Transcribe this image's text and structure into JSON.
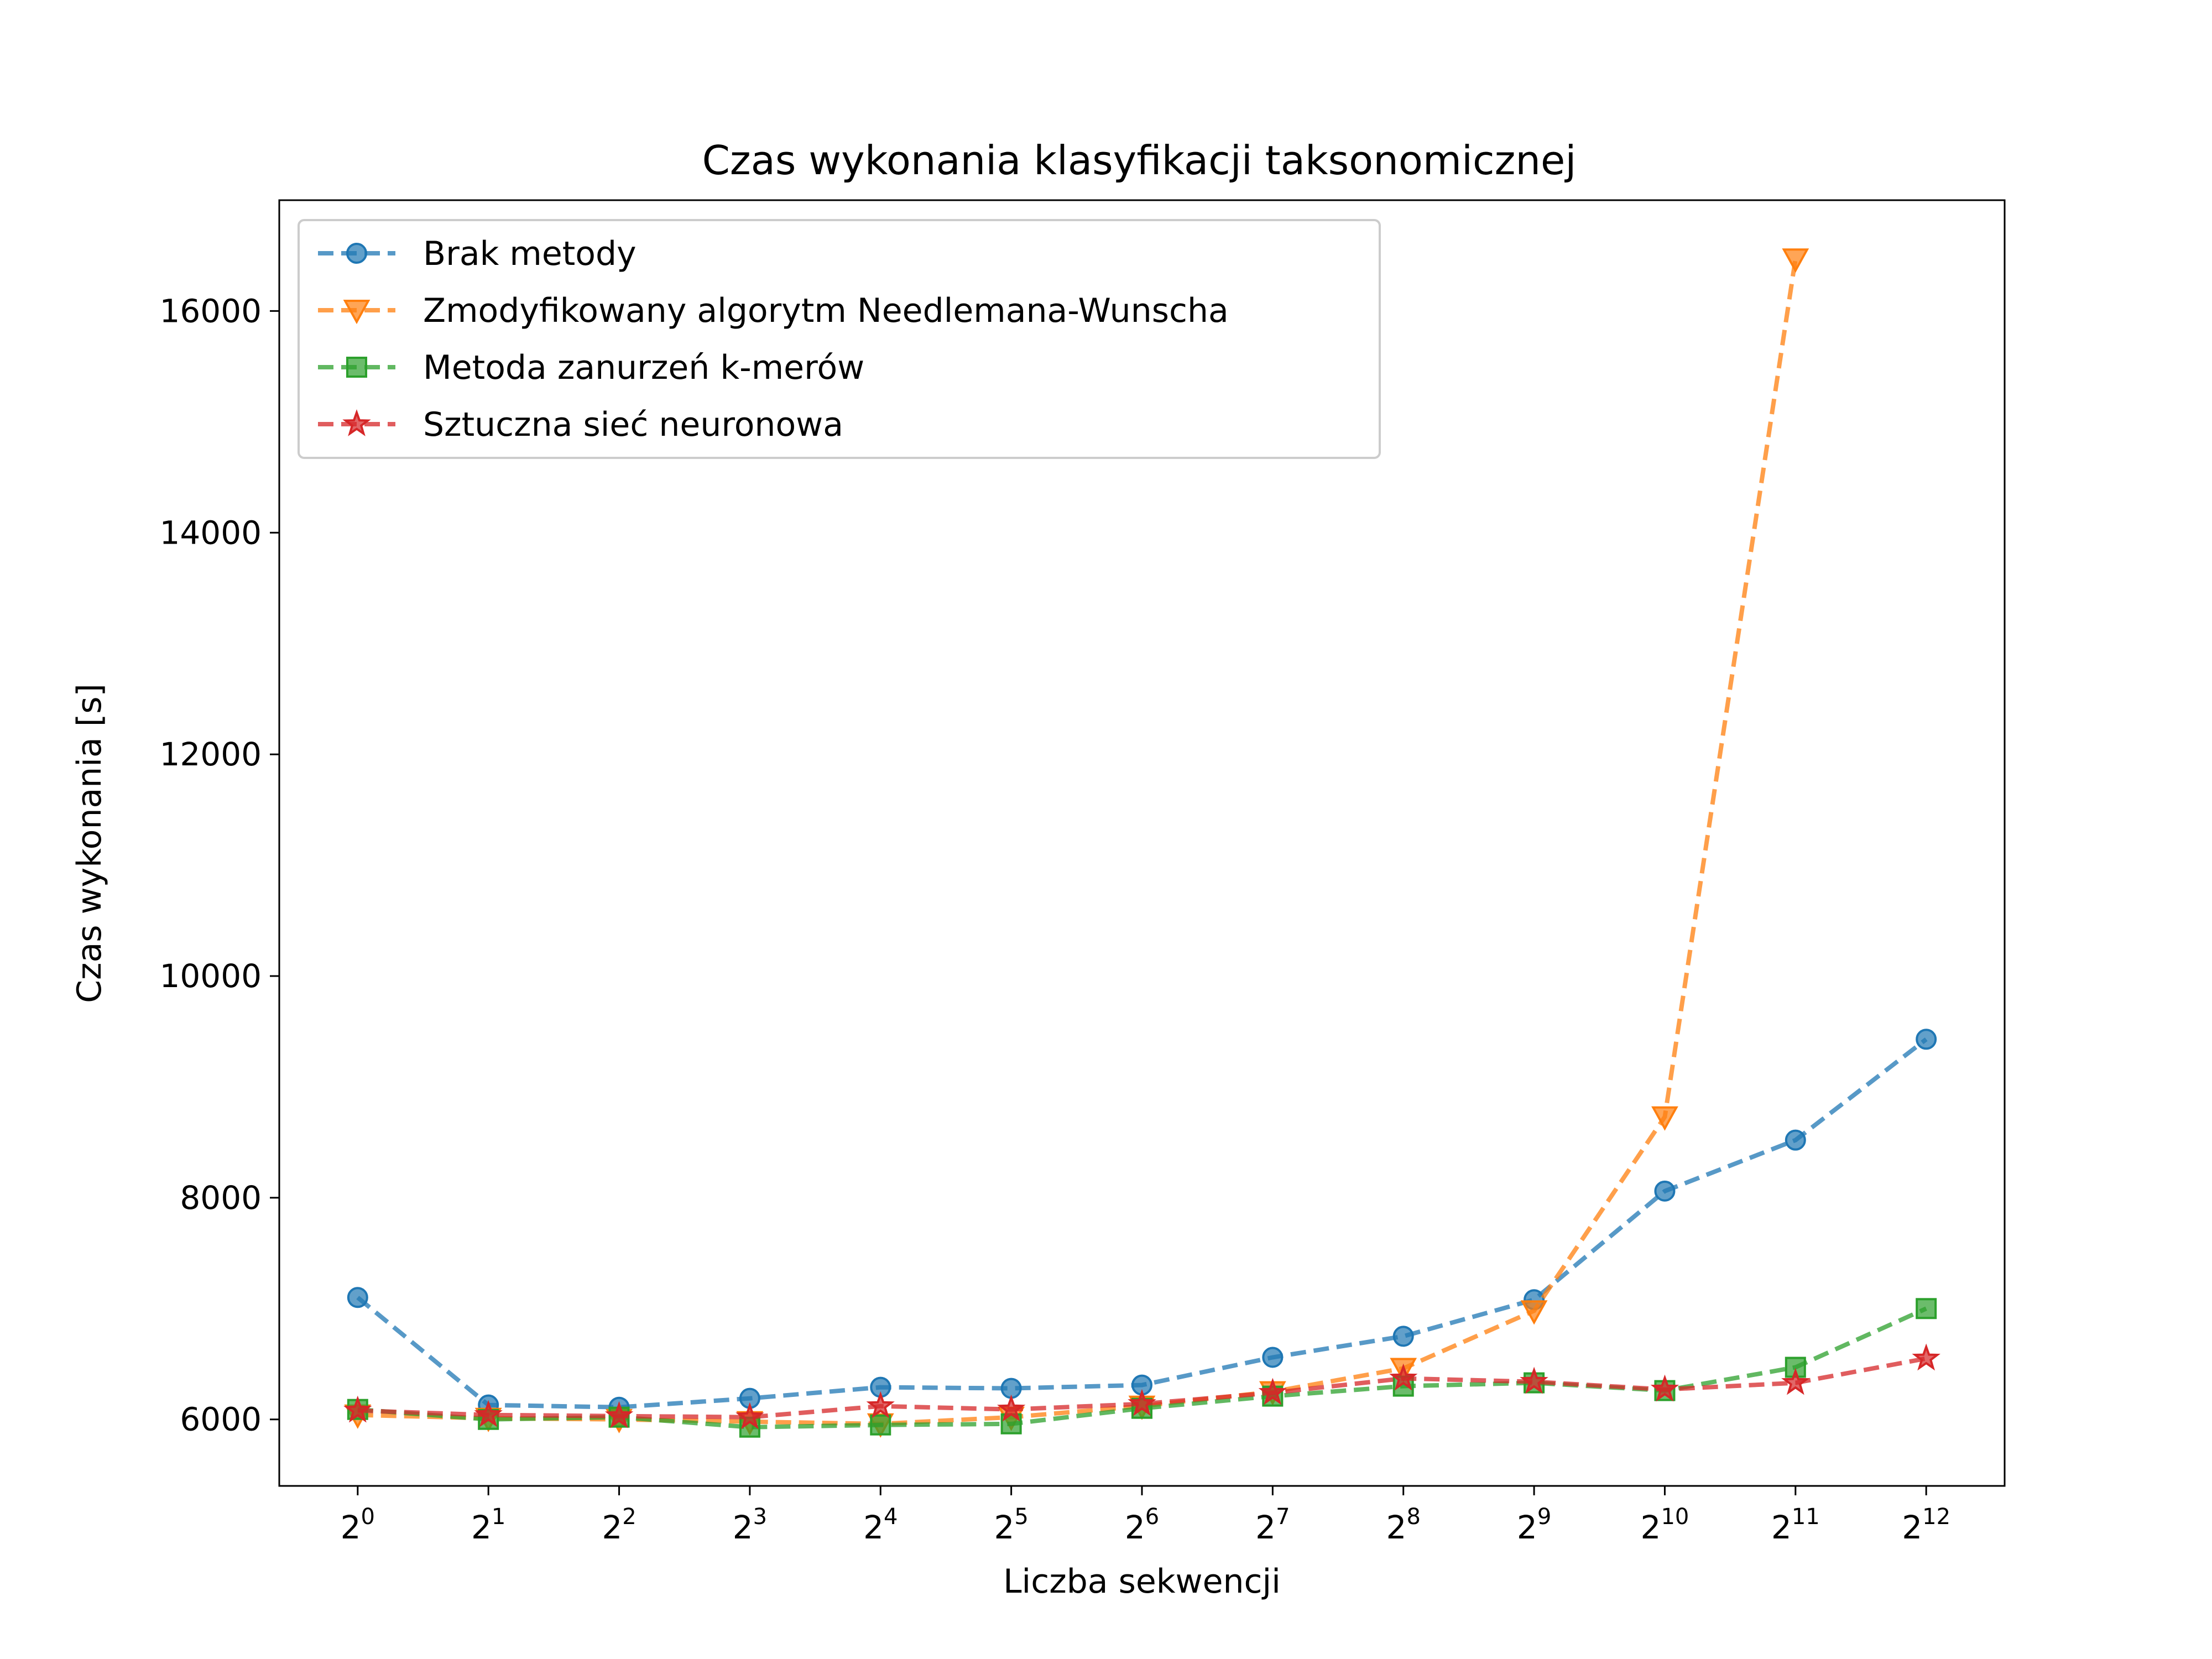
{
  "chart_data": {
    "type": "line",
    "title": "Czas wykonania klasyfikacji taksonomicznej",
    "xlabel": "Liczba sekwencji",
    "ylabel": "Czas wykonania [s]",
    "x": [
      1,
      2,
      4,
      8,
      16,
      32,
      64,
      128,
      256,
      512,
      1024,
      2048,
      4096
    ],
    "x_scale": "log2",
    "x_tick_labels": [
      {
        "base": "2",
        "exp": "0"
      },
      {
        "base": "2",
        "exp": "1"
      },
      {
        "base": "2",
        "exp": "2"
      },
      {
        "base": "2",
        "exp": "3"
      },
      {
        "base": "2",
        "exp": "4"
      },
      {
        "base": "2",
        "exp": "5"
      },
      {
        "base": "2",
        "exp": "6"
      },
      {
        "base": "2",
        "exp": "7"
      },
      {
        "base": "2",
        "exp": "8"
      },
      {
        "base": "2",
        "exp": "9"
      },
      {
        "base": "2",
        "exp": "10"
      },
      {
        "base": "2",
        "exp": "11"
      },
      {
        "base": "2",
        "exp": "12"
      }
    ],
    "ylim": [
      5400,
      17000
    ],
    "y_ticks": [
      6000,
      8000,
      10000,
      12000,
      14000,
      16000
    ],
    "y_tick_labels": [
      "6000",
      "8000",
      "10000",
      "12000",
      "14000",
      "16000"
    ],
    "grid": false,
    "legend_position": "top-left",
    "series": [
      {
        "name": "Brak metody",
        "color": "#1f77b4",
        "marker": "circle",
        "values": [
          7100,
          6130,
          6110,
          6190,
          6290,
          6280,
          6310,
          6560,
          6750,
          7080,
          8060,
          8520,
          9430
        ]
      },
      {
        "name": "Zmodyfikowany algorytm Needlemana-Wunscha",
        "color": "#ff7f0e",
        "marker": "triangle-down",
        "values": [
          6040,
          6010,
          6000,
          5980,
          5960,
          6020,
          6120,
          6250,
          6460,
          6980,
          8730,
          16470,
          null
        ]
      },
      {
        "name": "Metoda zanurzeń k-merów",
        "color": "#2ca02c",
        "marker": "square",
        "values": [
          6090,
          6000,
          6020,
          5930,
          5950,
          5960,
          6100,
          6210,
          6300,
          6330,
          6260,
          6470,
          7000
        ]
      },
      {
        "name": "Sztuczna sieć neuronowa",
        "color": "#d62728",
        "marker": "star",
        "values": [
          6080,
          6040,
          6030,
          6020,
          6120,
          6090,
          6140,
          6240,
          6370,
          6340,
          6270,
          6330,
          6550
        ]
      }
    ]
  }
}
